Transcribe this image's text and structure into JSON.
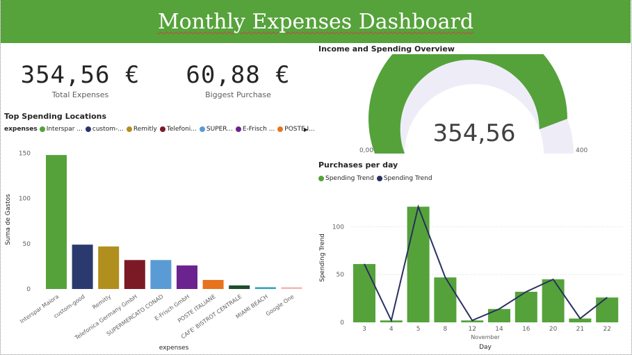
{
  "header": {
    "title": "Monthly Expenses Dashboard"
  },
  "kpis": [
    {
      "value": "354,56 €",
      "label": "Total Expenses"
    },
    {
      "value": "60,88 €",
      "label": "Biggest Purchase"
    }
  ],
  "colors": {
    "header": "#56a23b",
    "green": "#55a23b",
    "navy": "#28305f",
    "gauge_track": "#eeedf7"
  },
  "gauge": {
    "title": "Income and Spending Overview",
    "value": 354.56,
    "value_label": "354,56",
    "min_label": "0,00",
    "max_label": "400",
    "max": 400
  },
  "bar_legend": {
    "title": "expenses",
    "items": [
      {
        "label": "Interspar ...",
        "color": "#55a23b"
      },
      {
        "label": "custom-...",
        "color": "#28356e"
      },
      {
        "label": "Remitly",
        "color": "#b18f1f"
      },
      {
        "label": "Telefoni...",
        "color": "#7b1a25"
      },
      {
        "label": "SUPER...",
        "color": "#5b9bd5"
      },
      {
        "label": "E-Frisch ...",
        "color": "#6a238f"
      },
      {
        "label": "POSTE I...",
        "color": "#e8731d"
      }
    ]
  },
  "combo_legend": {
    "items": [
      {
        "label": "Spending Trend",
        "color": "#55a23b"
      },
      {
        "label": "Spending Trend",
        "color": "#28305f"
      }
    ]
  },
  "chart_data": [
    {
      "type": "bar",
      "title": "Top Spending Locations",
      "xlabel": "expenses",
      "ylabel": "Suma de Gastos",
      "ylim": [
        0,
        155
      ],
      "yticks": [
        0,
        50,
        100,
        150
      ],
      "categories": [
        "Interspar Maiora",
        "custom-good",
        "Remitly",
        "Telefonica Germany GmbH",
        "SUPERMERCATO CONAD",
        "E-Frisch GmbH",
        "POSTE ITALIANE",
        "CAFE' BISTROT CENTRALE",
        "MIAMI BEACH",
        "Google One"
      ],
      "values": [
        148,
        49,
        47,
        32,
        32,
        26,
        10,
        4,
        2,
        2
      ],
      "colors": [
        "#55a23b",
        "#2b3a6e",
        "#b18f1f",
        "#7b1a25",
        "#5b9bd5",
        "#6a238f",
        "#e8731d",
        "#1f4e2c",
        "#3aa0c0",
        "#f2b8b8"
      ],
      "grid": false
    },
    {
      "type": "bar",
      "title": "Purchases per day",
      "xlabel": "Day",
      "x_sublabel": "November",
      "ylabel": "Spending Trend",
      "ylim": [
        0,
        125
      ],
      "yticks": [
        0,
        50,
        100
      ],
      "categories": [
        "3",
        "4",
        "5",
        "8",
        "12",
        "14",
        "16",
        "20",
        "21",
        "22"
      ],
      "series": [
        {
          "name": "Spending Trend",
          "kind": "bar",
          "color": "#55a23b",
          "values": [
            61,
            2,
            121,
            47,
            2,
            14,
            32,
            45,
            4,
            26
          ]
        },
        {
          "name": "Spending Trend",
          "kind": "line",
          "color": "#28305f",
          "values": [
            61,
            2,
            121,
            47,
            2,
            14,
            32,
            45,
            4,
            26
          ]
        }
      ],
      "grid": true
    }
  ]
}
